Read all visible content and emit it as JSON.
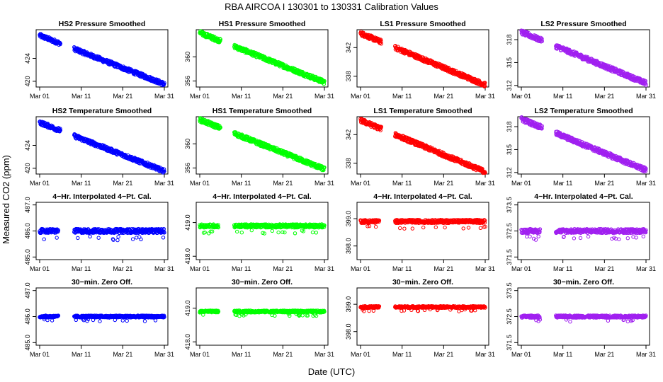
{
  "figure": {
    "title": "RBA   AIRCOA I   130301 to 130331   Calibration Values",
    "xlabel": "Date (UTC)",
    "ylabel": "Measured CO2 (ppm)"
  },
  "chart_data": [
    {
      "type": "scatter",
      "title": "HS2 Pressure Smoothed",
      "color": "#0000ff",
      "start": 428,
      "end": 419.5,
      "noise": 0.35,
      "ylim": [
        419,
        429
      ],
      "yticks": [
        "420",
        "424"
      ],
      "ytick_values": [
        420,
        424
      ],
      "xticks": [
        "Mar 01",
        "Mar 11",
        "Mar 21",
        "Mar 31"
      ],
      "x_days": [
        1,
        11,
        21,
        31
      ],
      "x_range": [
        1,
        31
      ],
      "segments": [
        [
          1,
          6
        ],
        [
          9.3,
          31
        ]
      ]
    },
    {
      "type": "scatter",
      "title": "HS1 Pressure Smoothed",
      "color": "#00ff00",
      "start": 364,
      "end": 355.8,
      "noise": 0.35,
      "ylim": [
        355,
        364.5
      ],
      "yticks": [
        "356",
        "360"
      ],
      "ytick_values": [
        356,
        360
      ],
      "xticks": [
        "Mar 01",
        "Mar 11",
        "Mar 21",
        "Mar 31"
      ],
      "x_days": [
        1,
        11,
        21,
        31
      ],
      "x_range": [
        1,
        31
      ],
      "segments": [
        [
          1,
          6
        ],
        [
          9.3,
          31
        ]
      ]
    },
    {
      "type": "scatter",
      "title": "LS1 Pressure Smoothed",
      "color": "#ff0000",
      "start": 344,
      "end": 336.8,
      "noise": 0.3,
      "ylim": [
        336.5,
        344.5
      ],
      "yticks": [
        "338",
        "342"
      ],
      "ytick_values": [
        338,
        342
      ],
      "xticks": [
        "Mar 01",
        "Mar 11",
        "Mar 21",
        "Mar 31"
      ],
      "x_days": [
        1,
        11,
        21,
        31
      ],
      "x_range": [
        1,
        31
      ],
      "segments": [
        [
          1,
          6
        ],
        [
          9.3,
          31
        ]
      ]
    },
    {
      "type": "scatter",
      "title": "LS2 Pressure Smoothed",
      "color": "#a020f0",
      "start": 319,
      "end": 312.3,
      "noise": 0.3,
      "ylim": [
        311.8,
        319.3
      ],
      "yticks": [
        "312",
        "315",
        "318"
      ],
      "ytick_values": [
        312,
        315,
        318
      ],
      "xticks": [
        "Mar 01",
        "Mar 11",
        "Mar 21",
        "Mar 31"
      ],
      "x_days": [
        1,
        11,
        21,
        31
      ],
      "x_range": [
        1,
        31
      ],
      "segments": [
        [
          1,
          6
        ],
        [
          9.3,
          31
        ]
      ]
    },
    {
      "type": "scatter",
      "title": "HS2 Temperature Smoothed",
      "color": "#0000ff",
      "start": 428,
      "end": 419.5,
      "noise": 0.35,
      "ylim": [
        419,
        429
      ],
      "yticks": [
        "420",
        "424"
      ],
      "ytick_values": [
        420,
        424
      ],
      "xticks": [
        "Mar 01",
        "Mar 11",
        "Mar 21",
        "Mar 31"
      ],
      "x_days": [
        1,
        11,
        21,
        31
      ],
      "x_range": [
        1,
        31
      ],
      "segments": [
        [
          1,
          6
        ],
        [
          9.3,
          31
        ]
      ]
    },
    {
      "type": "scatter",
      "title": "HS1 Temperature Smoothed",
      "color": "#00ff00",
      "start": 364,
      "end": 355.8,
      "noise": 0.35,
      "ylim": [
        355,
        364.5
      ],
      "yticks": [
        "356",
        "360"
      ],
      "ytick_values": [
        356,
        360
      ],
      "xticks": [
        "Mar 01",
        "Mar 11",
        "Mar 21",
        "Mar 31"
      ],
      "x_days": [
        1,
        11,
        21,
        31
      ],
      "x_range": [
        1,
        31
      ],
      "segments": [
        [
          1,
          6
        ],
        [
          9.3,
          31
        ]
      ]
    },
    {
      "type": "scatter",
      "title": "LS1 Temperature Smoothed",
      "color": "#ff0000",
      "start": 344,
      "end": 336.8,
      "noise": 0.3,
      "ylim": [
        336.5,
        344.5
      ],
      "yticks": [
        "338",
        "342"
      ],
      "ytick_values": [
        338,
        342
      ],
      "xticks": [
        "Mar 01",
        "Mar 11",
        "Mar 21",
        "Mar 31"
      ],
      "x_days": [
        1,
        11,
        21,
        31
      ],
      "x_range": [
        1,
        31
      ],
      "segments": [
        [
          1,
          6
        ],
        [
          9.3,
          31
        ]
      ]
    },
    {
      "type": "scatter",
      "title": "LS2 Temperature Smoothed",
      "color": "#a020f0",
      "start": 319,
      "end": 312.3,
      "noise": 0.3,
      "ylim": [
        311.8,
        319.3
      ],
      "yticks": [
        "312",
        "315",
        "318"
      ],
      "ytick_values": [
        312,
        315,
        318
      ],
      "xticks": [
        "Mar 01",
        "Mar 11",
        "Mar 21",
        "Mar 31"
      ],
      "x_days": [
        1,
        11,
        21,
        31
      ],
      "x_range": [
        1,
        31
      ],
      "segments": [
        [
          1,
          6
        ],
        [
          9.3,
          31
        ]
      ]
    },
    {
      "type": "scatter",
      "title": "4−Hr. Interpolated 4−Pt. Cal.",
      "color": "#0000ff",
      "start": 486.0,
      "end": 486.0,
      "noise": 0.08,
      "ylim": [
        484.9,
        487.1
      ],
      "yticks": [
        "485.0",
        "486.0",
        "487.0"
      ],
      "ytick_values": [
        485,
        486,
        487
      ],
      "xticks": [
        "Mar 01",
        "Mar 11",
        "Mar 21",
        "Mar 31"
      ],
      "x_days": [
        1,
        11,
        21,
        31
      ],
      "x_range": [
        1,
        31
      ],
      "segments": [
        [
          1,
          5.5
        ],
        [
          9.3,
          31
        ]
      ]
    },
    {
      "type": "scatter",
      "title": "4−Hr. Interpolated 4−Pt. Cal.",
      "color": "#00ff00",
      "start": 418.9,
      "end": 418.9,
      "noise": 0.05,
      "ylim": [
        417.9,
        419.6
      ],
      "yticks": [
        "418.0",
        "419.0"
      ],
      "ytick_values": [
        418,
        419
      ],
      "xticks": [
        "Mar 01",
        "Mar 11",
        "Mar 21",
        "Mar 31"
      ],
      "x_days": [
        1,
        11,
        21,
        31
      ],
      "x_range": [
        1,
        31
      ],
      "segments": [
        [
          1,
          5.5
        ],
        [
          9.3,
          31
        ]
      ]
    },
    {
      "type": "scatter",
      "title": "4−Hr. Interpolated 4−Pt. Cal.",
      "color": "#ff0000",
      "start": 398.9,
      "end": 398.9,
      "noise": 0.06,
      "ylim": [
        397.5,
        399.6
      ],
      "yticks": [
        "398.0",
        "399.0"
      ],
      "ytick_values": [
        398,
        399
      ],
      "xticks": [
        "Mar 01",
        "Mar 11",
        "Mar 21",
        "Mar 31"
      ],
      "x_days": [
        1,
        11,
        21,
        31
      ],
      "x_range": [
        1,
        31
      ],
      "segments": [
        [
          1,
          5.5
        ],
        [
          9.3,
          31
        ]
      ]
    },
    {
      "type": "scatter",
      "title": "4−Hr. Interpolated 4−Pt. Cal.",
      "color": "#a020f0",
      "start": 372.5,
      "end": 372.5,
      "noise": 0.08,
      "ylim": [
        371.4,
        373.6
      ],
      "yticks": [
        "371.5",
        "372.5",
        "373.5"
      ],
      "ytick_values": [
        371.5,
        372.5,
        373.5
      ],
      "xticks": [
        "Mar 01",
        "Mar 11",
        "Mar 21",
        "Mar 31"
      ],
      "x_days": [
        1,
        11,
        21,
        31
      ],
      "x_range": [
        1,
        31
      ],
      "segments": [
        [
          1,
          5.5
        ],
        [
          9.3,
          31
        ]
      ]
    },
    {
      "type": "scatter",
      "title": "30−min. Zero Off.",
      "color": "#0000ff",
      "start": 486.0,
      "end": 486.0,
      "noise": 0.04,
      "ylim": [
        484.9,
        487.1
      ],
      "yticks": [
        "485.0",
        "486.0",
        "487.0"
      ],
      "ytick_values": [
        485,
        486,
        487
      ],
      "xticks": [
        "Mar 01",
        "Mar 11",
        "Mar 21",
        "Mar 31"
      ],
      "x_days": [
        1,
        11,
        21,
        31
      ],
      "x_range": [
        1,
        31
      ],
      "segments": [
        [
          1,
          5.5
        ],
        [
          9.3,
          31
        ]
      ]
    },
    {
      "type": "scatter",
      "title": "30−min. Zero Off.",
      "color": "#00ff00",
      "start": 418.9,
      "end": 418.9,
      "noise": 0.03,
      "ylim": [
        417.9,
        419.6
      ],
      "yticks": [
        "418.0",
        "419.0"
      ],
      "ytick_values": [
        418,
        419
      ],
      "xticks": [
        "Mar 01",
        "Mar 11",
        "Mar 21",
        "Mar 31"
      ],
      "x_days": [
        1,
        11,
        21,
        31
      ],
      "x_range": [
        1,
        31
      ],
      "segments": [
        [
          1,
          5.5
        ],
        [
          9.3,
          31
        ]
      ]
    },
    {
      "type": "scatter",
      "title": "30−min. Zero Off.",
      "color": "#ff0000",
      "start": 398.9,
      "end": 398.9,
      "noise": 0.035,
      "ylim": [
        397.5,
        399.6
      ],
      "yticks": [
        "398.0",
        "399.0"
      ],
      "ytick_values": [
        398,
        399
      ],
      "xticks": [
        "Mar 01",
        "Mar 11",
        "Mar 21",
        "Mar 31"
      ],
      "x_days": [
        1,
        11,
        21,
        31
      ],
      "x_range": [
        1,
        31
      ],
      "segments": [
        [
          1,
          5.5
        ],
        [
          9.3,
          31
        ]
      ]
    },
    {
      "type": "scatter",
      "title": "30−min. Zero Off.",
      "color": "#a020f0",
      "start": 372.5,
      "end": 372.5,
      "noise": 0.045,
      "ylim": [
        371.4,
        373.6
      ],
      "yticks": [
        "371.5",
        "372.5",
        "373.5"
      ],
      "ytick_values": [
        371.5,
        372.5,
        373.5
      ],
      "xticks": [
        "Mar 01",
        "Mar 11",
        "Mar 21",
        "Mar 31"
      ],
      "x_days": [
        1,
        11,
        21,
        31
      ],
      "x_range": [
        1,
        31
      ],
      "segments": [
        [
          1,
          5.5
        ],
        [
          9.3,
          31
        ]
      ]
    }
  ]
}
